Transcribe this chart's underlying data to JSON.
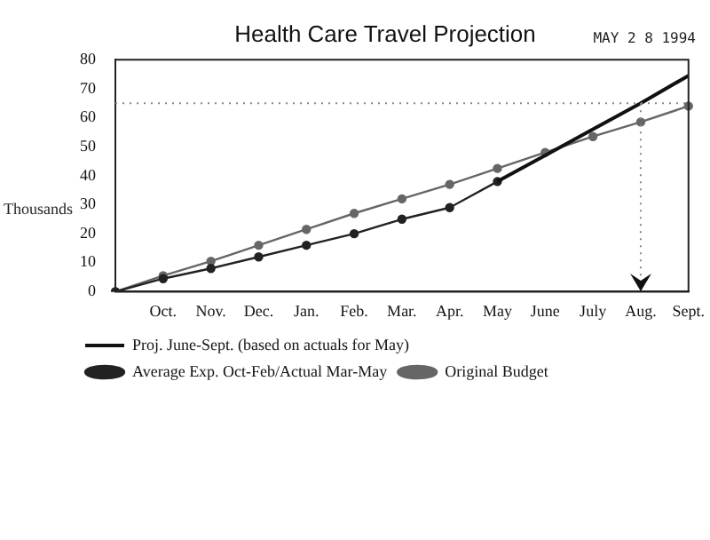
{
  "chart_data": {
    "type": "line",
    "title": "Health Care Travel Projection",
    "ylabel": "Thousands",
    "annotations": [
      "MAY 2 8 1994"
    ],
    "categories": [
      null,
      "Oct.",
      "Nov.",
      "Dec.",
      "Jan.",
      "Feb.",
      "Mar.",
      "Apr.",
      "May",
      "June",
      "July",
      "Aug.",
      "Sept."
    ],
    "series": [
      {
        "name": "Original Budget",
        "color": "#666666",
        "marker": "circle",
        "values": [
          0,
          5.5,
          10.5,
          16,
          21.5,
          27,
          32,
          37,
          42.5,
          48,
          53.5,
          58.5,
          64
        ]
      },
      {
        "name": "Average Exp. Oct-Feb/Actual Mar-May",
        "color": "#222222",
        "marker": "circle",
        "values": [
          0,
          4.5,
          8,
          12,
          16,
          20,
          25,
          29,
          38,
          null,
          null,
          null,
          null
        ]
      },
      {
        "name": "Proj. June-Sept. (based on actuals for May)",
        "color": "#111111",
        "marker": "none",
        "values": [
          null,
          null,
          null,
          null,
          null,
          null,
          null,
          null,
          38,
          47,
          56,
          65,
          74.5
        ]
      }
    ],
    "ylim": [
      0,
      80
    ],
    "yticks": [
      0,
      10,
      20,
      30,
      40,
      50,
      60,
      70,
      80
    ],
    "grid": false,
    "legend": "bottom",
    "ref_lines": [
      {
        "axis": "y",
        "value": 65,
        "color": "#888888",
        "line_style": "dotted"
      },
      {
        "axis": "x",
        "value": "Aug.",
        "color": "#888888",
        "line_style": "dotted"
      }
    ]
  }
}
